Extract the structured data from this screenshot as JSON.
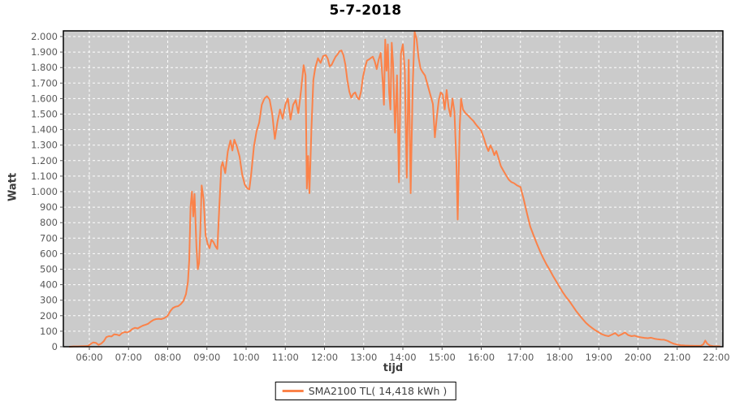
{
  "legend": {
    "label": "SMA2100 TL( 14,418 kWh )",
    "swatch_color": "#fb8249"
  },
  "colors": {
    "series_orange": "#fb8249",
    "plot_background": "#cbcbcb",
    "gridline": "#ffffff",
    "plot_border": "#000000",
    "tick_label": "#595959",
    "axis_title": "#3c3c3c",
    "title": "#000000"
  },
  "chart_data": {
    "type": "line",
    "title": "5-7-2018",
    "xlabel": "tijd",
    "ylabel": "Watt",
    "plot_bg": "#cbcbcb",
    "grid": true,
    "grid_style": "white dashed",
    "legend_position": "bottom-center",
    "ylim": [
      0,
      2037
    ],
    "xlim_hours": [
      5.33,
      22.17
    ],
    "y_ticks": [
      [
        0,
        "0"
      ],
      [
        100,
        "100"
      ],
      [
        200,
        "200"
      ],
      [
        300,
        "300"
      ],
      [
        400,
        "400"
      ],
      [
        500,
        "500"
      ],
      [
        600,
        "600"
      ],
      [
        700,
        "700"
      ],
      [
        800,
        "800"
      ],
      [
        900,
        "900"
      ],
      [
        1000,
        "1.000"
      ],
      [
        1100,
        "1.100"
      ],
      [
        1200,
        "1.200"
      ],
      [
        1300,
        "1.300"
      ],
      [
        1400,
        "1.400"
      ],
      [
        1500,
        "1.500"
      ],
      [
        1600,
        "1.600"
      ],
      [
        1700,
        "1.700"
      ],
      [
        1800,
        "1.800"
      ],
      [
        1900,
        "1.900"
      ],
      [
        2000,
        "2.000"
      ]
    ],
    "x_ticks": [
      [
        6,
        "06:00"
      ],
      [
        7,
        "07:00"
      ],
      [
        8,
        "08:00"
      ],
      [
        9,
        "09:00"
      ],
      [
        10,
        "10:00"
      ],
      [
        11,
        "11:00"
      ],
      [
        12,
        "12:00"
      ],
      [
        13,
        "13:00"
      ],
      [
        14,
        "14:00"
      ],
      [
        15,
        "15:00"
      ],
      [
        16,
        "16:00"
      ],
      [
        17,
        "17:00"
      ],
      [
        18,
        "18:00"
      ],
      [
        19,
        "19:00"
      ],
      [
        20,
        "20:00"
      ],
      [
        21,
        "21:00"
      ],
      [
        22,
        "22:00"
      ]
    ],
    "series": [
      {
        "name": "SMA2100 TL( 14,418 kWh )",
        "color": "#fb8249",
        "points": [
          [
            "05:30",
            0
          ],
          [
            "05:36",
            2
          ],
          [
            "05:42",
            2
          ],
          [
            "05:48",
            3
          ],
          [
            "05:54",
            4
          ],
          [
            "05:58",
            5
          ],
          [
            "06:02",
            18
          ],
          [
            "06:06",
            28
          ],
          [
            "06:10",
            25
          ],
          [
            "06:14",
            12
          ],
          [
            "06:18",
            20
          ],
          [
            "06:22",
            35
          ],
          [
            "06:26",
            62
          ],
          [
            "06:30",
            68
          ],
          [
            "06:34",
            66
          ],
          [
            "06:38",
            80
          ],
          [
            "06:42",
            78
          ],
          [
            "06:46",
            72
          ],
          [
            "06:50",
            88
          ],
          [
            "06:54",
            95
          ],
          [
            "06:58",
            92
          ],
          [
            "07:02",
            100
          ],
          [
            "07:06",
            115
          ],
          [
            "07:10",
            122
          ],
          [
            "07:14",
            118
          ],
          [
            "07:18",
            128
          ],
          [
            "07:22",
            136
          ],
          [
            "07:26",
            142
          ],
          [
            "07:30",
            148
          ],
          [
            "07:34",
            162
          ],
          [
            "07:38",
            172
          ],
          [
            "07:42",
            178
          ],
          [
            "07:46",
            180
          ],
          [
            "07:50",
            178
          ],
          [
            "07:55",
            185
          ],
          [
            "08:00",
            200
          ],
          [
            "08:04",
            230
          ],
          [
            "08:08",
            250
          ],
          [
            "08:12",
            258
          ],
          [
            "08:16",
            262
          ],
          [
            "08:20",
            275
          ],
          [
            "08:24",
            295
          ],
          [
            "08:28",
            340
          ],
          [
            "08:31",
            420
          ],
          [
            "08:33",
            560
          ],
          [
            "08:35",
            900
          ],
          [
            "08:37",
            1000
          ],
          [
            "08:39",
            840
          ],
          [
            "08:41",
            985
          ],
          [
            "08:44",
            640
          ],
          [
            "08:46",
            500
          ],
          [
            "08:48",
            540
          ],
          [
            "08:50",
            760
          ],
          [
            "08:52",
            1040
          ],
          [
            "08:55",
            950
          ],
          [
            "08:58",
            720
          ],
          [
            "09:01",
            665
          ],
          [
            "09:04",
            635
          ],
          [
            "09:07",
            690
          ],
          [
            "09:10",
            675
          ],
          [
            "09:13",
            648
          ],
          [
            "09:16",
            630
          ],
          [
            "09:19",
            900
          ],
          [
            "09:22",
            1160
          ],
          [
            "09:24",
            1190
          ],
          [
            "09:28",
            1120
          ],
          [
            "09:32",
            1260
          ],
          [
            "09:36",
            1330
          ],
          [
            "09:39",
            1265
          ],
          [
            "09:42",
            1335
          ],
          [
            "09:46",
            1290
          ],
          [
            "09:50",
            1225
          ],
          [
            "09:54",
            1110
          ],
          [
            "09:58",
            1045
          ],
          [
            "10:02",
            1020
          ],
          [
            "10:05",
            1015
          ],
          [
            "10:08",
            1120
          ],
          [
            "10:12",
            1290
          ],
          [
            "10:16",
            1390
          ],
          [
            "10:20",
            1445
          ],
          [
            "10:24",
            1560
          ],
          [
            "10:28",
            1600
          ],
          [
            "10:32",
            1615
          ],
          [
            "10:36",
            1595
          ],
          [
            "10:40",
            1500
          ],
          [
            "10:44",
            1340
          ],
          [
            "10:48",
            1450
          ],
          [
            "10:52",
            1530
          ],
          [
            "10:56",
            1470
          ],
          [
            "11:00",
            1560
          ],
          [
            "11:04",
            1600
          ],
          [
            "11:08",
            1465
          ],
          [
            "11:12",
            1560
          ],
          [
            "11:16",
            1590
          ],
          [
            "11:20",
            1505
          ],
          [
            "11:24",
            1650
          ],
          [
            "11:28",
            1815
          ],
          [
            "11:31",
            1750
          ],
          [
            "11:33",
            1020
          ],
          [
            "11:35",
            1230
          ],
          [
            "11:37",
            990
          ],
          [
            "11:40",
            1400
          ],
          [
            "11:43",
            1720
          ],
          [
            "11:46",
            1800
          ],
          [
            "11:50",
            1860
          ],
          [
            "11:54",
            1830
          ],
          [
            "11:58",
            1875
          ],
          [
            "12:02",
            1880
          ],
          [
            "12:05",
            1858
          ],
          [
            "12:08",
            1808
          ],
          [
            "12:11",
            1818
          ],
          [
            "12:14",
            1845
          ],
          [
            "12:17",
            1870
          ],
          [
            "12:20",
            1885
          ],
          [
            "12:23",
            1905
          ],
          [
            "12:26",
            1910
          ],
          [
            "12:29",
            1880
          ],
          [
            "12:32",
            1820
          ],
          [
            "12:35",
            1720
          ],
          [
            "12:38",
            1645
          ],
          [
            "12:41",
            1605
          ],
          [
            "12:44",
            1630
          ],
          [
            "12:47",
            1640
          ],
          [
            "12:50",
            1608
          ],
          [
            "12:53",
            1595
          ],
          [
            "12:56",
            1645
          ],
          [
            "12:59",
            1740
          ],
          [
            "13:02",
            1800
          ],
          [
            "13:05",
            1845
          ],
          [
            "13:08",
            1852
          ],
          [
            "13:11",
            1862
          ],
          [
            "13:14",
            1870
          ],
          [
            "13:17",
            1840
          ],
          [
            "13:20",
            1790
          ],
          [
            "13:23",
            1850
          ],
          [
            "13:26",
            1895
          ],
          [
            "13:29",
            1720
          ],
          [
            "13:31",
            1560
          ],
          [
            "13:33",
            1980
          ],
          [
            "13:35",
            1780
          ],
          [
            "13:37",
            1950
          ],
          [
            "13:39",
            1640
          ],
          [
            "13:41",
            1530
          ],
          [
            "13:43",
            1960
          ],
          [
            "13:45",
            1830
          ],
          [
            "13:48",
            1380
          ],
          [
            "13:51",
            1750
          ],
          [
            "13:54",
            1060
          ],
          [
            "13:57",
            1890
          ],
          [
            "14:00",
            1950
          ],
          [
            "14:03",
            1780
          ],
          [
            "14:06",
            1090
          ],
          [
            "14:09",
            1850
          ],
          [
            "14:12",
            990
          ],
          [
            "14:15",
            1680
          ],
          [
            "14:18",
            2030
          ],
          [
            "14:21",
            1985
          ],
          [
            "14:24",
            1865
          ],
          [
            "14:27",
            1795
          ],
          [
            "14:30",
            1772
          ],
          [
            "14:34",
            1748
          ],
          [
            "14:38",
            1685
          ],
          [
            "14:42",
            1625
          ],
          [
            "14:46",
            1565
          ],
          [
            "14:49",
            1350
          ],
          [
            "14:52",
            1480
          ],
          [
            "14:55",
            1590
          ],
          [
            "14:58",
            1640
          ],
          [
            "15:01",
            1625
          ],
          [
            "15:04",
            1530
          ],
          [
            "15:07",
            1655
          ],
          [
            "15:10",
            1545
          ],
          [
            "15:13",
            1485
          ],
          [
            "15:16",
            1600
          ],
          [
            "15:19",
            1515
          ],
          [
            "15:22",
            1190
          ],
          [
            "15:24",
            820
          ],
          [
            "15:27",
            1420
          ],
          [
            "15:29",
            1600
          ],
          [
            "15:32",
            1530
          ],
          [
            "15:36",
            1505
          ],
          [
            "15:40",
            1490
          ],
          [
            "15:44",
            1472
          ],
          [
            "15:48",
            1455
          ],
          [
            "15:52",
            1432
          ],
          [
            "15:56",
            1412
          ],
          [
            "16:00",
            1392
          ],
          [
            "16:04",
            1345
          ],
          [
            "16:08",
            1292
          ],
          [
            "16:11",
            1262
          ],
          [
            "16:14",
            1298
          ],
          [
            "16:17",
            1272
          ],
          [
            "16:20",
            1235
          ],
          [
            "16:23",
            1262
          ],
          [
            "16:26",
            1222
          ],
          [
            "16:30",
            1165
          ],
          [
            "16:34",
            1135
          ],
          [
            "16:38",
            1105
          ],
          [
            "16:42",
            1078
          ],
          [
            "16:46",
            1062
          ],
          [
            "16:50",
            1055
          ],
          [
            "16:55",
            1040
          ],
          [
            "17:00",
            1030
          ],
          [
            "17:05",
            950
          ],
          [
            "17:10",
            860
          ],
          [
            "17:15",
            775
          ],
          [
            "17:20",
            720
          ],
          [
            "17:25",
            665
          ],
          [
            "17:30",
            615
          ],
          [
            "17:35",
            570
          ],
          [
            "17:40",
            530
          ],
          [
            "17:45",
            495
          ],
          [
            "17:50",
            455
          ],
          [
            "17:55",
            420
          ],
          [
            "18:00",
            385
          ],
          [
            "18:05",
            350
          ],
          [
            "18:10",
            320
          ],
          [
            "18:15",
            293
          ],
          [
            "18:20",
            263
          ],
          [
            "18:25",
            232
          ],
          [
            "18:30",
            206
          ],
          [
            "18:35",
            180
          ],
          [
            "18:40",
            155
          ],
          [
            "18:45",
            136
          ],
          [
            "18:50",
            120
          ],
          [
            "18:55",
            105
          ],
          [
            "19:00",
            92
          ],
          [
            "19:05",
            80
          ],
          [
            "19:10",
            72
          ],
          [
            "19:15",
            68
          ],
          [
            "19:20",
            78
          ],
          [
            "19:25",
            88
          ],
          [
            "19:30",
            70
          ],
          [
            "19:35",
            80
          ],
          [
            "19:40",
            92
          ],
          [
            "19:45",
            75
          ],
          [
            "19:50",
            68
          ],
          [
            "19:55",
            71
          ],
          [
            "20:00",
            64
          ],
          [
            "20:05",
            60
          ],
          [
            "20:10",
            57
          ],
          [
            "20:15",
            55
          ],
          [
            "20:20",
            58
          ],
          [
            "20:25",
            52
          ],
          [
            "20:30",
            48
          ],
          [
            "20:35",
            46
          ],
          [
            "20:40",
            45
          ],
          [
            "20:45",
            38
          ],
          [
            "20:50",
            28
          ],
          [
            "20:55",
            19
          ],
          [
            "21:00",
            14
          ],
          [
            "21:05",
            10
          ],
          [
            "21:12",
            8
          ],
          [
            "21:20",
            7
          ],
          [
            "21:28",
            6
          ],
          [
            "21:36",
            6
          ],
          [
            "21:40",
            15
          ],
          [
            "21:43",
            40
          ],
          [
            "21:46",
            20
          ],
          [
            "21:50",
            8
          ],
          [
            "21:55",
            4
          ],
          [
            "22:00",
            3
          ],
          [
            "22:05",
            3
          ]
        ]
      }
    ]
  }
}
